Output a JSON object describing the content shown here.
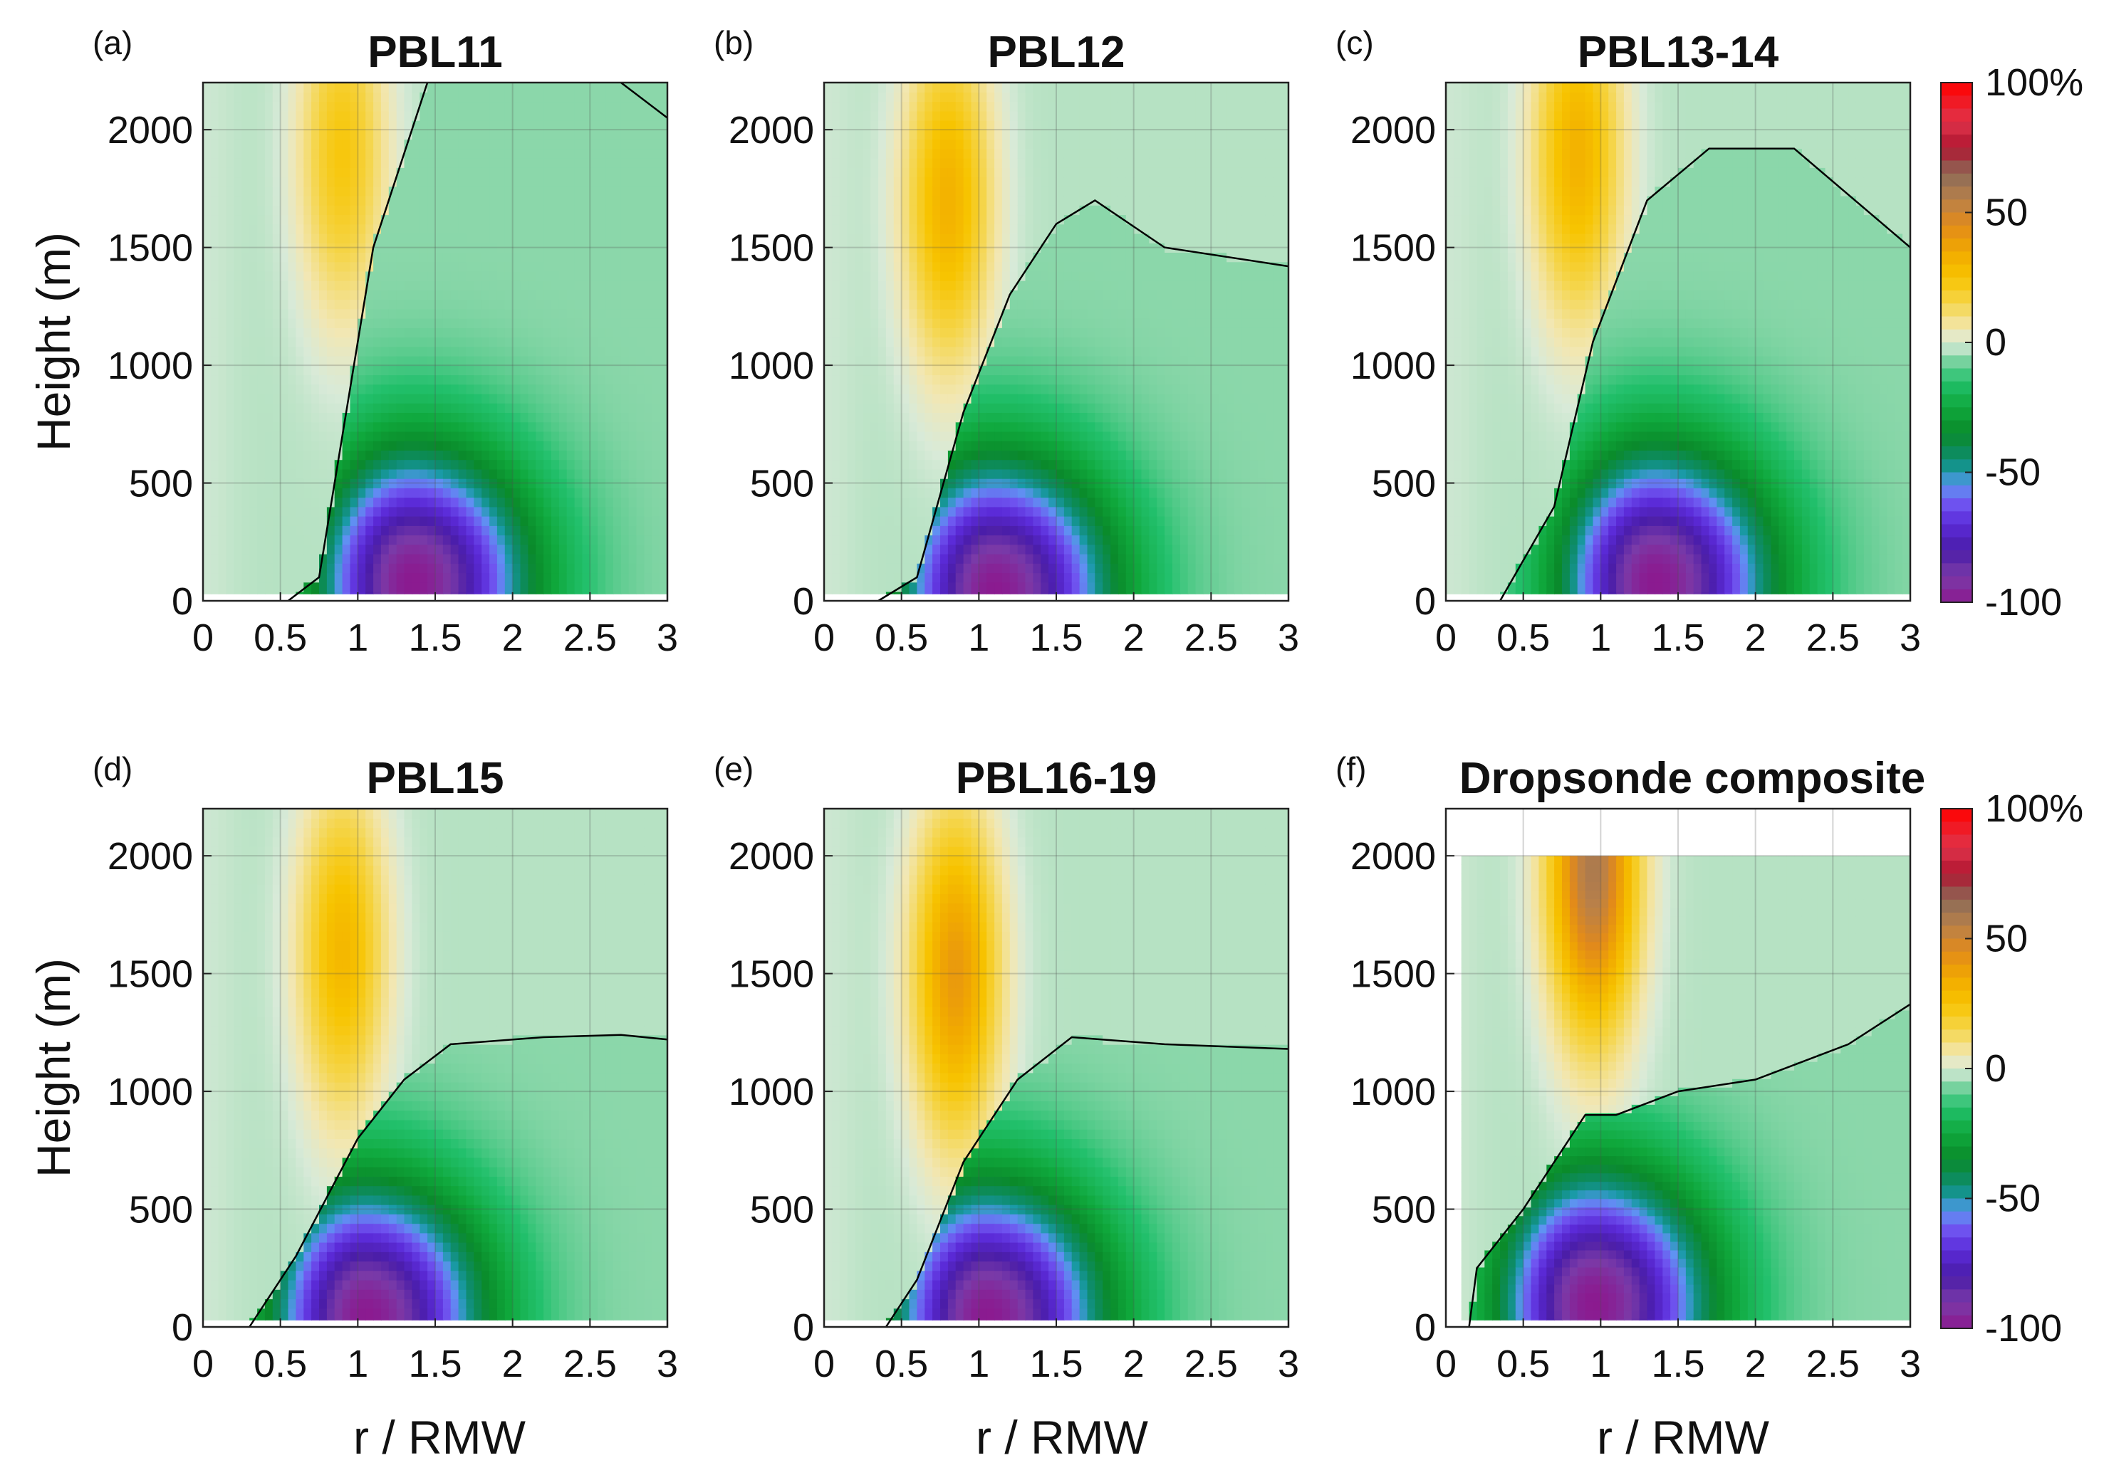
{
  "figure": {
    "xlabel": "r / RMW",
    "ylabel": "Height (m)",
    "contour_label": "0"
  },
  "chart_data": [
    {
      "type": "heatmap",
      "panel": "(a)",
      "title": "PBL11",
      "xlim": [
        0,
        3
      ],
      "ylim": [
        0,
        2200
      ],
      "x_ticks": [
        "0",
        "0.5",
        "1",
        "1.5",
        "2",
        "2.5",
        "3"
      ],
      "y_ticks": [
        "0",
        "500",
        "1000",
        "1500",
        "2000"
      ],
      "min_value": -100,
      "min_loc": {
        "r": 1.35,
        "z": 80
      },
      "max_value": 22,
      "max_loc": {
        "r": 0.9,
        "z": 1900
      },
      "zero_contour": [
        [
          0.55,
          0
        ],
        [
          0.75,
          100
        ],
        [
          0.9,
          700
        ],
        [
          1.1,
          1500
        ],
        [
          1.45,
          2200
        ]
      ],
      "top_limit": 2200,
      "top_contour": [
        [
          2.7,
          2200
        ],
        [
          3.0,
          2050
        ]
      ]
    },
    {
      "type": "heatmap",
      "panel": "(b)",
      "title": "PBL12",
      "xlim": [
        0,
        3
      ],
      "ylim": [
        0,
        2200
      ],
      "x_ticks": [
        "0",
        "0.5",
        "1",
        "1.5",
        "2",
        "2.5",
        "3"
      ],
      "y_ticks": [
        "0",
        "500",
        "1000",
        "1500",
        "2000"
      ],
      "min_value": -100,
      "min_loc": {
        "r": 1.1,
        "z": 40
      },
      "max_value": 30,
      "max_loc": {
        "r": 0.8,
        "z": 1700
      },
      "zero_contour": [
        [
          0.35,
          0
        ],
        [
          0.6,
          100
        ],
        [
          0.9,
          800
        ],
        [
          1.2,
          1300
        ],
        [
          1.5,
          1600
        ],
        [
          1.75,
          1700
        ],
        [
          2.2,
          1500
        ],
        [
          3.0,
          1420
        ]
      ]
    },
    {
      "type": "heatmap",
      "panel": "(c)",
      "title": "PBL13-14",
      "xlim": [
        0,
        3
      ],
      "ylim": [
        0,
        2200
      ],
      "x_ticks": [
        "0",
        "0.5",
        "1",
        "1.5",
        "2",
        "2.5",
        "3"
      ],
      "y_ticks": [
        "0",
        "500",
        "1000",
        "1500",
        "2000"
      ],
      "min_value": -100,
      "min_loc": {
        "r": 1.35,
        "z": 80
      },
      "max_value": 30,
      "max_loc": {
        "r": 0.85,
        "z": 1900
      },
      "zero_contour": [
        [
          0.35,
          0
        ],
        [
          0.7,
          400
        ],
        [
          0.95,
          1100
        ],
        [
          1.3,
          1700
        ],
        [
          1.7,
          1920
        ],
        [
          2.25,
          1920
        ],
        [
          3.0,
          1500
        ]
      ]
    },
    {
      "type": "heatmap",
      "panel": "(d)",
      "title": "PBL15",
      "xlim": [
        0,
        3
      ],
      "ylim": [
        0,
        2200
      ],
      "x_ticks": [
        "0",
        "0.5",
        "1",
        "1.5",
        "2",
        "2.5",
        "3"
      ],
      "y_ticks": [
        "0",
        "500",
        "1000",
        "1500",
        "2000"
      ],
      "min_value": -100,
      "min_loc": {
        "r": 1.05,
        "z": 40
      },
      "max_value": 28,
      "max_loc": {
        "r": 0.9,
        "z": 1600
      },
      "zero_contour": [
        [
          0.3,
          0
        ],
        [
          0.6,
          300
        ],
        [
          1.0,
          800
        ],
        [
          1.3,
          1050
        ],
        [
          1.6,
          1200
        ],
        [
          2.2,
          1230
        ],
        [
          2.7,
          1240
        ],
        [
          3.0,
          1220
        ]
      ]
    },
    {
      "type": "heatmap",
      "panel": "(e)",
      "title": "PBL16-19",
      "xlim": [
        0,
        3
      ],
      "ylim": [
        0,
        2200
      ],
      "x_ticks": [
        "0",
        "0.5",
        "1",
        "1.5",
        "2",
        "2.5",
        "3"
      ],
      "y_ticks": [
        "0",
        "500",
        "1000",
        "1500",
        "2000"
      ],
      "min_value": -100,
      "min_loc": {
        "r": 1.05,
        "z": 40
      },
      "max_value": 38,
      "max_loc": {
        "r": 0.85,
        "z": 1500
      },
      "zero_contour": [
        [
          0.4,
          0
        ],
        [
          0.6,
          200
        ],
        [
          0.9,
          700
        ],
        [
          1.25,
          1050
        ],
        [
          1.6,
          1230
        ],
        [
          2.2,
          1200
        ],
        [
          3.0,
          1180
        ]
      ]
    },
    {
      "type": "heatmap",
      "panel": "(f)",
      "title": "Dropsonde composite",
      "xlim": [
        0,
        3
      ],
      "ylim": [
        0,
        2200
      ],
      "x_ticks": [
        "0",
        "0.5",
        "1",
        "1.5",
        "2",
        "2.5",
        "3"
      ],
      "y_ticks": [
        "0",
        "500",
        "1000",
        "1500",
        "2000"
      ],
      "min_value": -100,
      "min_loc": {
        "r": 0.95,
        "z": 100
      },
      "max_value": 55,
      "max_loc": {
        "r": 0.95,
        "z": 1950
      },
      "zero_contour": [
        [
          0.15,
          0
        ],
        [
          0.2,
          250
        ],
        [
          0.5,
          500
        ],
        [
          0.9,
          900
        ],
        [
          1.1,
          900
        ],
        [
          1.5,
          1000
        ],
        [
          2.0,
          1050
        ],
        [
          2.6,
          1200
        ],
        [
          3.0,
          1370
        ]
      ],
      "data_top": 2000
    }
  ],
  "colorbar": {
    "range": [
      -100,
      100
    ],
    "tick_labels": [
      "100%",
      "50",
      "0",
      "-50",
      "-100"
    ],
    "tick_values": [
      100,
      50,
      0,
      -50,
      -100
    ],
    "colors": [
      {
        "v": -100,
        "c": "#8b1a8f"
      },
      {
        "v": -90,
        "c": "#7a3aa8"
      },
      {
        "v": -80,
        "c": "#4a1da8"
      },
      {
        "v": -70,
        "c": "#5b2ad8"
      },
      {
        "v": -62,
        "c": "#6f55f0"
      },
      {
        "v": -55,
        "c": "#5f93f2"
      },
      {
        "v": -50,
        "c": "#1a9aa8"
      },
      {
        "v": -45,
        "c": "#0e8c6e"
      },
      {
        "v": -35,
        "c": "#0a8a2a"
      },
      {
        "v": -25,
        "c": "#0fa83c"
      },
      {
        "v": -15,
        "c": "#22c06c"
      },
      {
        "v": -8,
        "c": "#6fd09a"
      },
      {
        "v": -3,
        "c": "#b6e2c3"
      },
      {
        "v": 0,
        "c": "#d8ead8"
      },
      {
        "v": 5,
        "c": "#f2e7b3"
      },
      {
        "v": 15,
        "c": "#f5d54a"
      },
      {
        "v": 25,
        "c": "#f7c400"
      },
      {
        "v": 35,
        "c": "#f1a900"
      },
      {
        "v": 45,
        "c": "#e28a1a"
      },
      {
        "v": 55,
        "c": "#b8804a"
      },
      {
        "v": 65,
        "c": "#8c6a57"
      },
      {
        "v": 75,
        "c": "#b01530"
      },
      {
        "v": 85,
        "c": "#e0344a"
      },
      {
        "v": 100,
        "c": "#ff0000"
      }
    ]
  }
}
